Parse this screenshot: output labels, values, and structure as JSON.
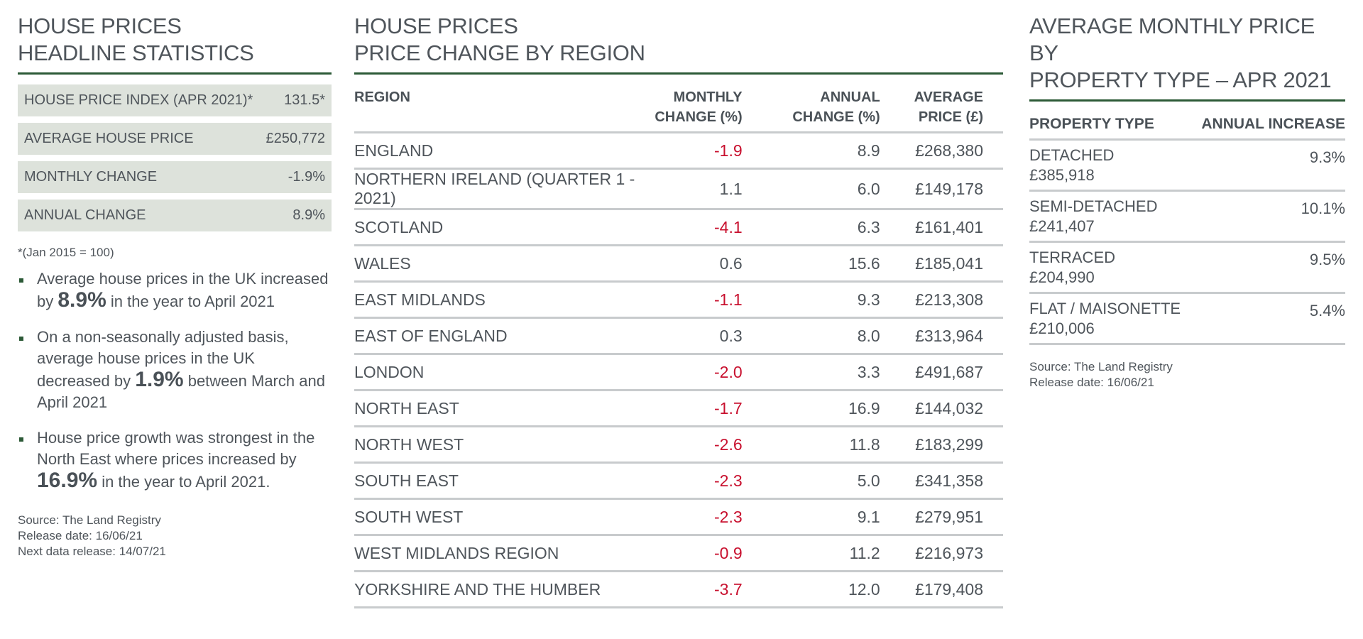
{
  "left": {
    "heading": [
      "HOUSE PRICES",
      "HEADLINE STATISTICS"
    ],
    "stats": [
      {
        "label": "HOUSE PRICE INDEX (APR 2021)*",
        "value": "131.5*"
      },
      {
        "label": "AVERAGE HOUSE PRICE",
        "value": "£250,772"
      },
      {
        "label": "MONTHLY CHANGE",
        "value": "-1.9%"
      },
      {
        "label": "ANNUAL CHANGE",
        "value": "8.9%"
      }
    ],
    "footnote": "*(Jan 2015 = 100)",
    "bullets": [
      {
        "pre": "Average house prices in the UK increased by ",
        "bold": "8.9%",
        "post": " in the year to April 2021"
      },
      {
        "pre": "On a non-seasonally adjusted basis, average house prices in the UK decreased by ",
        "bold": "1.9%",
        "post": " between March and April 2021"
      },
      {
        "pre": "House price growth was strongest in the North East where prices increased by ",
        "bold": "16.9%",
        "post": " in the year to April 2021."
      }
    ],
    "source": "Source: The Land Registry",
    "release": "Release date: 16/06/21",
    "next_release": "Next data release: 14/07/21"
  },
  "middle": {
    "heading": [
      "HOUSE PRICES",
      "PRICE CHANGE BY REGION"
    ],
    "columns": {
      "region": "REGION",
      "monthly": [
        "MONTHLY",
        "CHANGE (%)"
      ],
      "annual": [
        "ANNUAL",
        "CHANGE (%)"
      ],
      "average": [
        "AVERAGE",
        "PRICE (£)"
      ]
    },
    "rows": [
      {
        "region": "ENGLAND",
        "monthly": "-1.9",
        "annual": "8.9",
        "price": "£268,380"
      },
      {
        "region": "NORTHERN IRELAND (QUARTER 1 - 2021)",
        "monthly": "1.1",
        "annual": "6.0",
        "price": "£149,178"
      },
      {
        "region": "SCOTLAND",
        "monthly": "-4.1",
        "annual": "6.3",
        "price": "£161,401"
      },
      {
        "region": "WALES",
        "monthly": "0.6",
        "annual": "15.6",
        "price": "£185,041"
      },
      {
        "region": "EAST MIDLANDS",
        "monthly": "-1.1",
        "annual": "9.3",
        "price": "£213,308"
      },
      {
        "region": "EAST OF ENGLAND",
        "monthly": "0.3",
        "annual": "8.0",
        "price": "£313,964"
      },
      {
        "region": "LONDON",
        "monthly": "-2.0",
        "annual": "3.3",
        "price": "£491,687"
      },
      {
        "region": "NORTH EAST",
        "monthly": "-1.7",
        "annual": "16.9",
        "price": "£144,032"
      },
      {
        "region": "NORTH WEST",
        "monthly": "-2.6",
        "annual": "11.8",
        "price": "£183,299"
      },
      {
        "region": "SOUTH EAST",
        "monthly": "-2.3",
        "annual": "5.0",
        "price": "£341,358"
      },
      {
        "region": "SOUTH WEST",
        "monthly": "-2.3",
        "annual": "9.1",
        "price": "£279,951"
      },
      {
        "region": "WEST MIDLANDS REGION",
        "monthly": "-0.9",
        "annual": "11.2",
        "price": "£216,973"
      },
      {
        "region": "YORKSHIRE AND THE HUMBER",
        "monthly": "-3.7",
        "annual": "12.0",
        "price": "£179,408"
      }
    ],
    "negative_color": "#c8102e"
  },
  "right": {
    "heading": [
      "AVERAGE MONTHLY PRICE BY",
      "PROPERTY TYPE – APR 2021"
    ],
    "columns": {
      "type": "PROPERTY TYPE",
      "increase": "ANNUAL INCREASE"
    },
    "rows": [
      {
        "type": "DETACHED",
        "price": "£385,918",
        "increase": "9.3%"
      },
      {
        "type": "SEMI-DETACHED",
        "price": "£241,407",
        "increase": "10.1%"
      },
      {
        "type": "TERRACED",
        "price": "£204,990",
        "increase": "9.5%"
      },
      {
        "type": "FLAT / MAISONETTE",
        "price": "£210,006",
        "increase": "5.4%"
      }
    ],
    "source": "Source: The Land Registry",
    "release": "Release date: 16/06/21"
  },
  "colors": {
    "accent_rule": "#2c5a37",
    "stat_bg": "#dde2db",
    "row_rule": "#c8cbcd"
  }
}
